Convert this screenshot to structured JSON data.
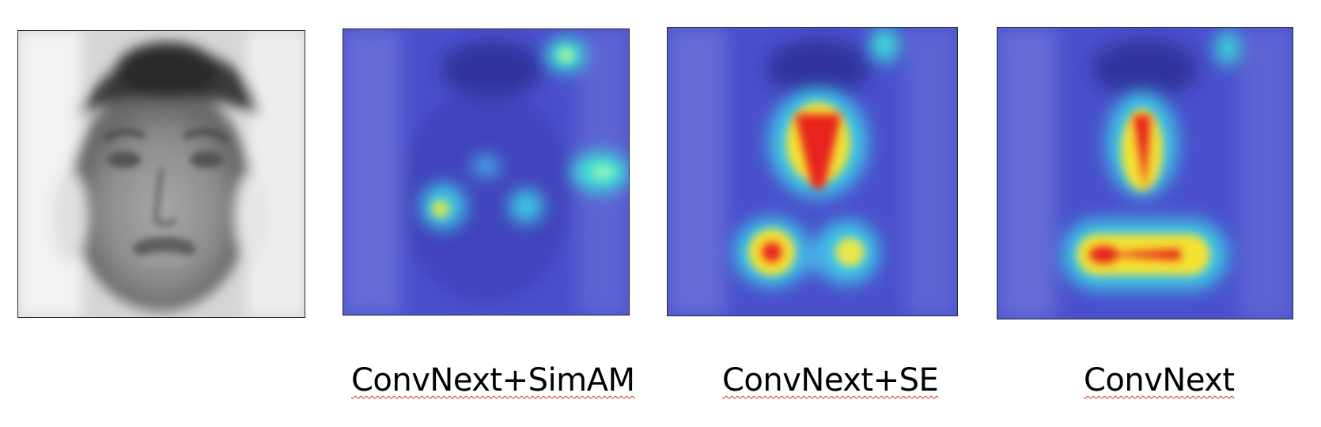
{
  "panels": [
    {
      "id": "original",
      "caption": ""
    },
    {
      "id": "simam",
      "caption": "ConvNext+SimAM"
    },
    {
      "id": "se",
      "caption": "ConvNext+SE"
    },
    {
      "id": "base",
      "caption": "ConvNext"
    }
  ],
  "colors": {
    "background": "#ffffff",
    "heatmap_base": "#3e3ec8",
    "heatmap_hot": "#e8241c",
    "heatmap_warm": "#f5e232",
    "heatmap_cool": "#3ee0d8",
    "caption_underline": "#d23232"
  }
}
